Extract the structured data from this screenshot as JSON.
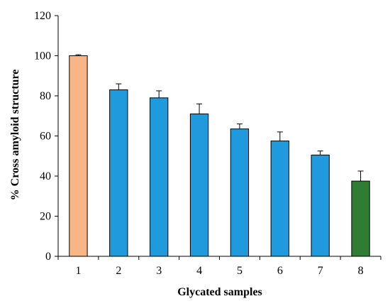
{
  "chart_data": {
    "type": "bar",
    "title": "",
    "xlabel": "Glycated samples",
    "ylabel": "% Cross amyloid structure",
    "categories": [
      "1",
      "2",
      "3",
      "4",
      "5",
      "6",
      "7",
      "8"
    ],
    "values": [
      100,
      83,
      79,
      71,
      63.5,
      57.5,
      50.5,
      37.5
    ],
    "errors": [
      0.5,
      3,
      3.5,
      5,
      2.5,
      4.5,
      2,
      5
    ],
    "bar_colors": [
      "#F8B585",
      "#1F9BDD",
      "#1F9BDD",
      "#1F9BDD",
      "#1F9BDD",
      "#1F9BDD",
      "#1F9BDD",
      "#2E7D32"
    ],
    "ylim": [
      0,
      120
    ],
    "yticks": [
      0,
      20,
      40,
      60,
      80,
      100,
      120
    ],
    "grid": false,
    "legend": "none"
  }
}
